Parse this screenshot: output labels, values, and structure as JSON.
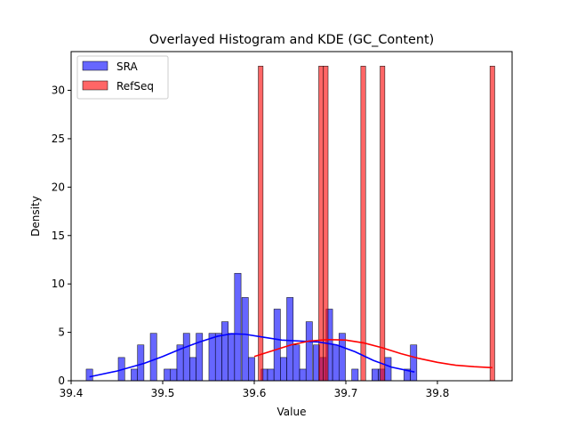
{
  "chart_data": {
    "type": "bar",
    "title": "Overlayed Histogram and KDE (GC_Content)",
    "xlabel": "Value",
    "ylabel": "Density",
    "xlim": [
      39.4,
      39.88
    ],
    "ylim": [
      0,
      33.5
    ],
    "x_ticks": [
      "39.4",
      "39.5",
      "39.6",
      "39.7",
      "39.8"
    ],
    "y_ticks": [
      "0",
      "5",
      "10",
      "15",
      "20",
      "25",
      "30"
    ],
    "grid": false,
    "legend_position": "top-left",
    "series": [
      {
        "name": "SRA",
        "color": "#0000ff",
        "kind": "histogram",
        "bin_width": 0.00708,
        "bins": [
          {
            "x": 39.42,
            "y": 1.2
          },
          {
            "x": 39.455,
            "y": 2.4
          },
          {
            "x": 39.469,
            "y": 1.2
          },
          {
            "x": 39.476,
            "y": 3.7
          },
          {
            "x": 39.49,
            "y": 4.9
          },
          {
            "x": 39.505,
            "y": 1.2
          },
          {
            "x": 39.512,
            "y": 1.2
          },
          {
            "x": 39.519,
            "y": 3.7
          },
          {
            "x": 39.526,
            "y": 4.9
          },
          {
            "x": 39.533,
            "y": 2.4
          },
          {
            "x": 39.54,
            "y": 4.9
          },
          {
            "x": 39.554,
            "y": 4.9
          },
          {
            "x": 39.561,
            "y": 4.9
          },
          {
            "x": 39.568,
            "y": 6.1
          },
          {
            "x": 39.575,
            "y": 4.9
          },
          {
            "x": 39.582,
            "y": 11.1
          },
          {
            "x": 39.59,
            "y": 8.6
          },
          {
            "x": 39.597,
            "y": 2.4
          },
          {
            "x": 39.611,
            "y": 1.2
          },
          {
            "x": 39.618,
            "y": 1.2
          },
          {
            "x": 39.625,
            "y": 7.4
          },
          {
            "x": 39.632,
            "y": 2.4
          },
          {
            "x": 39.639,
            "y": 8.6
          },
          {
            "x": 39.646,
            "y": 3.7
          },
          {
            "x": 39.653,
            "y": 1.2
          },
          {
            "x": 39.66,
            "y": 6.1
          },
          {
            "x": 39.668,
            "y": 3.7
          },
          {
            "x": 39.675,
            "y": 2.4
          },
          {
            "x": 39.682,
            "y": 7.4
          },
          {
            "x": 39.689,
            "y": 3.7
          },
          {
            "x": 39.696,
            "y": 4.9
          },
          {
            "x": 39.71,
            "y": 1.2
          },
          {
            "x": 39.732,
            "y": 1.2
          },
          {
            "x": 39.739,
            "y": 1.2
          },
          {
            "x": 39.746,
            "y": 2.4
          },
          {
            "x": 39.767,
            "y": 1.2
          },
          {
            "x": 39.774,
            "y": 3.7
          }
        ],
        "kde": [
          [
            39.42,
            0.4
          ],
          [
            39.45,
            1.0
          ],
          [
            39.48,
            1.8
          ],
          [
            39.5,
            2.5
          ],
          [
            39.52,
            3.3
          ],
          [
            39.54,
            4.0
          ],
          [
            39.56,
            4.6
          ],
          [
            39.575,
            4.85
          ],
          [
            39.59,
            4.8
          ],
          [
            39.61,
            4.5
          ],
          [
            39.63,
            4.2
          ],
          [
            39.65,
            4.1
          ],
          [
            39.67,
            4.0
          ],
          [
            39.69,
            3.7
          ],
          [
            39.71,
            3.0
          ],
          [
            39.73,
            2.1
          ],
          [
            39.75,
            1.4
          ],
          [
            39.775,
            0.9
          ]
        ]
      },
      {
        "name": "RefSeq",
        "color": "#ff0000",
        "kind": "histogram",
        "bin_width": 0.0052,
        "bins": [
          {
            "x": 39.607,
            "y": 32.5
          },
          {
            "x": 39.673,
            "y": 32.5
          },
          {
            "x": 39.678,
            "y": 32.5
          },
          {
            "x": 39.719,
            "y": 32.5
          },
          {
            "x": 39.74,
            "y": 32.5
          },
          {
            "x": 39.86,
            "y": 32.5
          }
        ],
        "kde": [
          [
            39.6,
            2.5
          ],
          [
            39.62,
            3.1
          ],
          [
            39.64,
            3.7
          ],
          [
            39.66,
            4.1
          ],
          [
            39.68,
            4.25
          ],
          [
            39.7,
            4.2
          ],
          [
            39.72,
            3.9
          ],
          [
            39.74,
            3.4
          ],
          [
            39.76,
            2.8
          ],
          [
            39.78,
            2.3
          ],
          [
            39.8,
            1.9
          ],
          [
            39.82,
            1.6
          ],
          [
            39.84,
            1.45
          ],
          [
            39.86,
            1.35
          ]
        ]
      }
    ]
  }
}
